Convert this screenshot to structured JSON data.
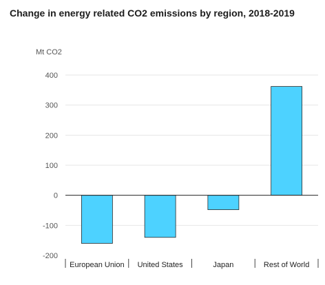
{
  "chart_data": {
    "type": "bar",
    "title": "Change in energy related CO2 emissions by region, 2018-2019",
    "ylabel": "Mt CO2",
    "xlabel": "",
    "categories": [
      "European Union",
      "United States",
      "Japan",
      "Rest of World"
    ],
    "values": [
      -160,
      -140,
      -48,
      362
    ],
    "ylim": [
      -200,
      400
    ],
    "yticks": [
      -200,
      -100,
      0,
      100,
      200,
      300,
      400
    ],
    "grid": true,
    "bar_color": "#4dd2ff",
    "bar_stroke": "#2a2a2a"
  }
}
